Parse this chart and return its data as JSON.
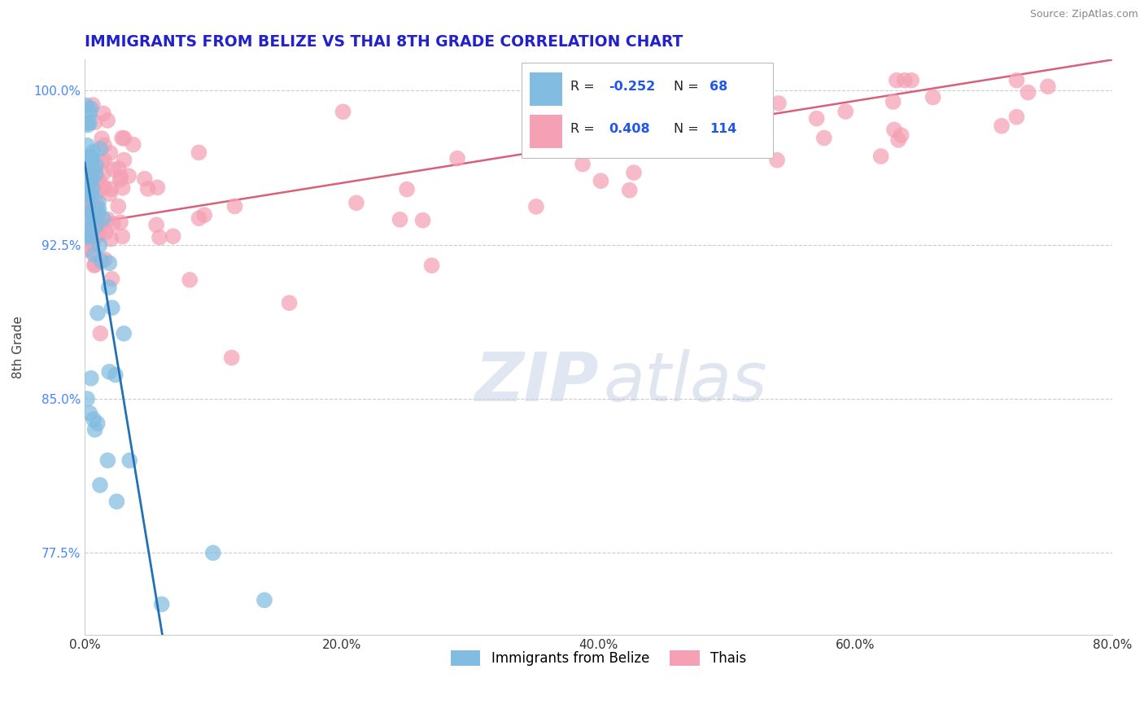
{
  "title": "IMMIGRANTS FROM BELIZE VS THAI 8TH GRADE CORRELATION CHART",
  "source_text": "Source: ZipAtlas.com",
  "ylabel": "8th Grade",
  "xlim": [
    0.0,
    0.8
  ],
  "ylim": [
    0.735,
    1.015
  ],
  "xticks": [
    0.0,
    0.2,
    0.4,
    0.6,
    0.8
  ],
  "xticklabels": [
    "0.0%",
    "20.0%",
    "40.0%",
    "60.0%",
    "80.0%"
  ],
  "yticks": [
    0.775,
    0.85,
    0.925,
    1.0
  ],
  "yticklabels": [
    "77.5%",
    "85.0%",
    "92.5%",
    "100.0%"
  ],
  "belize_R": -0.252,
  "belize_N": 68,
  "thai_R": 0.408,
  "thai_N": 114,
  "belize_color": "#82bce0",
  "thai_color": "#f5a0b5",
  "belize_line_color": "#2171b5",
  "thai_line_color": "#d9607a",
  "watermark_zip": "ZIP",
  "watermark_atlas": "atlas",
  "legend_belize_label": "Immigrants from Belize",
  "legend_thai_label": "Thais",
  "title_color": "#2222cc",
  "source_color": "#888888",
  "ytick_color": "#4488ff",
  "xtick_color": "#333333"
}
